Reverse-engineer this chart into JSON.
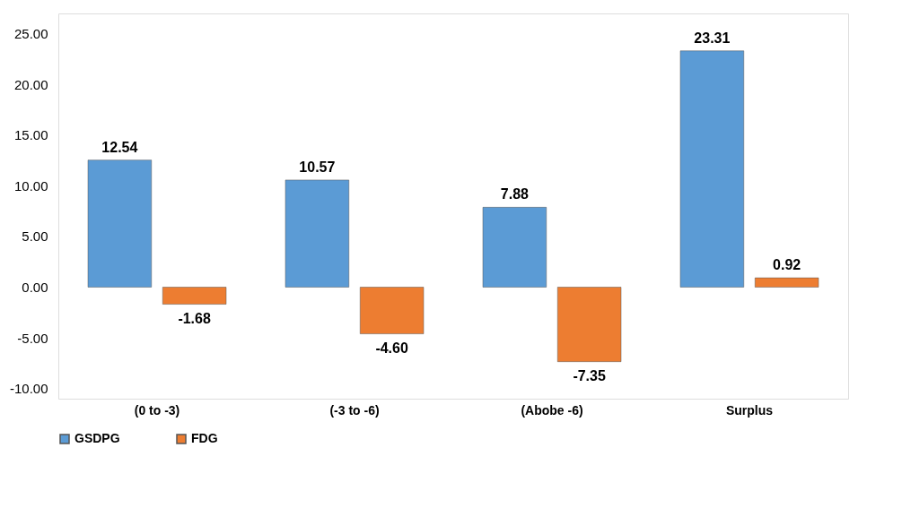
{
  "chart_data": {
    "type": "bar",
    "categories": [
      "(0 to -3)",
      "(-3 to -6)",
      "(Abobe -6)",
      "Surplus"
    ],
    "series": [
      {
        "name": "GSDPG",
        "color": "#5b9bd5",
        "values": [
          12.54,
          10.57,
          7.88,
          23.31
        ],
        "value_labels": [
          "12.54",
          "10.57",
          "7.88",
          "23.31"
        ]
      },
      {
        "name": "FDG",
        "color": "#ed7d31",
        "values": [
          -1.68,
          -4.6,
          -7.35,
          0.92
        ],
        "value_labels": [
          "-1.68",
          "-4.60",
          "-7.35",
          "0.92"
        ]
      }
    ],
    "ylim": [
      -11,
      27
    ],
    "yticks": [
      {
        "value": -10,
        "label": "-10.00"
      },
      {
        "value": -5,
        "label": "-5.00"
      },
      {
        "value": 0,
        "label": "0.00"
      },
      {
        "value": 5,
        "label": "5.00"
      },
      {
        "value": 10,
        "label": "10.00"
      },
      {
        "value": 15,
        "label": "15.00"
      },
      {
        "value": 20,
        "label": "20.00"
      },
      {
        "value": 25,
        "label": "25.00"
      }
    ],
    "grid": false,
    "legend": "bottom"
  }
}
